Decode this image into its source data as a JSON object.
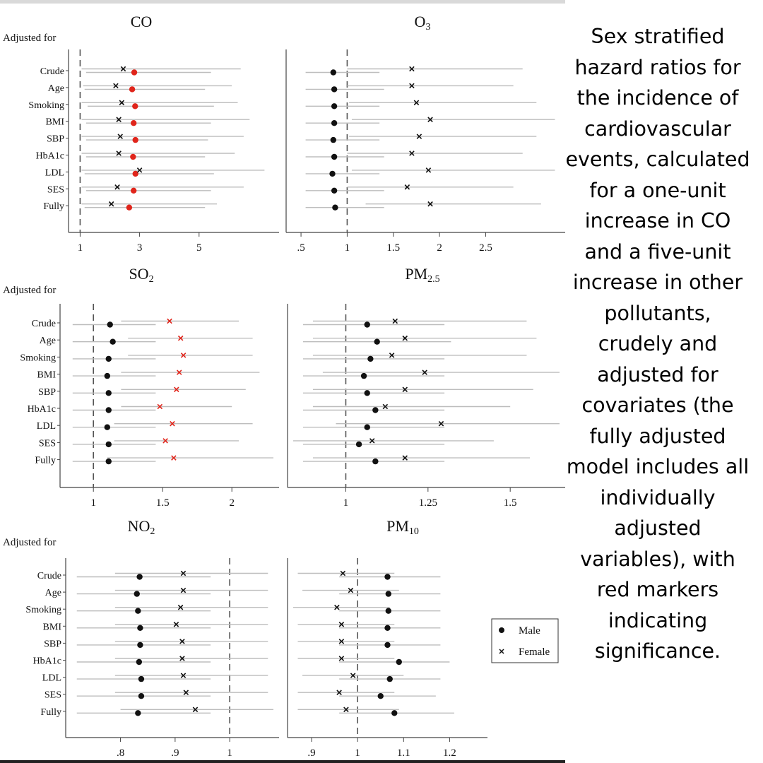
{
  "caption": "Sex stratified hazard ratios for the incidence of cardiovascular events, calculated for a one-unit increase in CO and a five-unit increase in other pollutants, crudely and adjusted for covariates (the fully adjusted model includes all individually adjusted variables), with red markers indicating significance.",
  "row_title": "Adjusted  for",
  "categories": [
    "Crude",
    "Age",
    "Smoking",
    "BMI",
    "SBP",
    "HbA1c",
    "LDL",
    "SES",
    "Fully"
  ],
  "legend": [
    {
      "label": "Male",
      "marker": "dot"
    },
    {
      "label": "Female",
      "marker": "cross"
    }
  ],
  "colors": {
    "significant": "#e0251b",
    "marker": "#111111",
    "ci": "#bdbdbd",
    "reference": "#555555"
  },
  "chart_data": [
    {
      "type": "forest",
      "title": "CO",
      "reference": 1,
      "xlim": [
        0.8,
        7.5
      ],
      "xticks": [
        {
          "v": 1,
          "label": "1"
        },
        {
          "v": 3,
          "label": "3"
        },
        {
          "v": 5,
          "label": "5"
        }
      ],
      "categories": [
        "Crude",
        "Age",
        "Smoking",
        "BMI",
        "SBP",
        "HbA1c",
        "LDL",
        "SES",
        "Fully"
      ],
      "series": [
        {
          "name": "Male",
          "marker": "dot",
          "values": [
            2.82,
            2.75,
            2.85,
            2.8,
            2.86,
            2.78,
            2.86,
            2.8,
            2.65
          ],
          "ci_low": [
            1.2,
            1.15,
            1.25,
            1.2,
            1.2,
            1.2,
            1.15,
            1.2,
            1.15
          ],
          "ci_high": [
            5.4,
            5.2,
            5.5,
            5.4,
            5.3,
            5.2,
            5.5,
            5.4,
            5.2
          ],
          "significant": [
            true,
            true,
            true,
            true,
            true,
            true,
            true,
            true,
            true
          ]
        },
        {
          "name": "Female",
          "marker": "cross",
          "values": [
            2.45,
            2.2,
            2.4,
            2.3,
            2.35,
            2.3,
            3.0,
            2.25,
            2.05
          ],
          "ci_low": [
            1.05,
            1.1,
            1.05,
            1.05,
            1.05,
            1.05,
            1.05,
            1.05,
            1.05
          ],
          "ci_high": [
            6.4,
            6.1,
            6.3,
            6.7,
            6.5,
            6.2,
            7.2,
            6.5,
            5.6
          ],
          "significant": [
            false,
            false,
            false,
            false,
            false,
            false,
            false,
            false,
            false
          ]
        }
      ]
    },
    {
      "type": "forest",
      "title": "O",
      "title_sub": "3",
      "reference": 1,
      "xlim": [
        0.4,
        3.3
      ],
      "xticks": [
        {
          "v": 0.5,
          "label": ".5"
        },
        {
          "v": 1,
          "label": "1"
        },
        {
          "v": 1.5,
          "label": "1.5"
        },
        {
          "v": 2,
          "label": "2"
        },
        {
          "v": 2.5,
          "label": "2.5"
        }
      ],
      "categories": [
        "Crude",
        "Age",
        "Smoking",
        "BMI",
        "SBP",
        "HbA1c",
        "LDL",
        "SES",
        "Fully"
      ],
      "series": [
        {
          "name": "Male",
          "marker": "dot",
          "values": [
            0.85,
            0.86,
            0.86,
            0.86,
            0.85,
            0.86,
            0.84,
            0.86,
            0.87
          ],
          "ci_low": [
            0.55,
            0.55,
            0.55,
            0.55,
            0.55,
            0.55,
            0.55,
            0.55,
            0.55
          ],
          "ci_high": [
            1.35,
            1.4,
            1.35,
            1.35,
            1.35,
            1.4,
            1.35,
            1.4,
            1.4
          ],
          "significant": [
            false,
            false,
            false,
            false,
            false,
            false,
            false,
            false,
            false
          ]
        },
        {
          "name": "Female",
          "marker": "cross",
          "values": [
            1.7,
            1.7,
            1.75,
            1.9,
            1.78,
            1.7,
            1.88,
            1.65,
            1.9
          ],
          "ci_low": [
            1.0,
            1.0,
            1.02,
            1.05,
            1.02,
            1.0,
            1.05,
            1.0,
            1.2
          ],
          "ci_high": [
            2.9,
            2.8,
            3.05,
            3.25,
            3.05,
            2.9,
            3.25,
            2.8,
            3.1
          ],
          "significant": [
            false,
            false,
            false,
            false,
            false,
            false,
            false,
            false,
            false
          ]
        }
      ]
    },
    {
      "type": "forest",
      "title": "SO",
      "title_sub": "2",
      "reference": 1,
      "xlim": [
        0.8,
        2.3
      ],
      "xticks": [
        {
          "v": 1,
          "label": "1"
        },
        {
          "v": 1.5,
          "label": "1.5"
        },
        {
          "v": 2,
          "label": "2"
        }
      ],
      "categories": [
        "Crude",
        "Age",
        "Smoking",
        "BMI",
        "SBP",
        "HbA1c",
        "LDL",
        "SES",
        "Fully"
      ],
      "series": [
        {
          "name": "Male",
          "marker": "dot",
          "values": [
            1.12,
            1.14,
            1.11,
            1.1,
            1.11,
            1.11,
            1.1,
            1.11,
            1.11
          ],
          "ci_low": [
            0.85,
            0.85,
            0.85,
            0.85,
            0.85,
            0.85,
            0.85,
            0.85,
            0.85
          ],
          "ci_high": [
            1.45,
            1.45,
            1.45,
            1.45,
            1.45,
            1.45,
            1.45,
            1.45,
            1.45
          ],
          "significant": [
            false,
            false,
            false,
            false,
            false,
            false,
            false,
            false,
            false
          ]
        },
        {
          "name": "Female",
          "marker": "cross",
          "values": [
            1.55,
            1.63,
            1.65,
            1.62,
            1.6,
            1.48,
            1.57,
            1.52,
            1.58
          ],
          "ci_low": [
            1.2,
            1.25,
            1.25,
            1.2,
            1.2,
            1.2,
            1.15,
            1.15,
            1.1
          ],
          "ci_high": [
            2.05,
            2.15,
            2.15,
            2.2,
            2.1,
            2.0,
            2.15,
            2.05,
            2.3
          ],
          "significant": [
            true,
            true,
            true,
            true,
            true,
            true,
            true,
            true,
            true
          ]
        }
      ]
    },
    {
      "type": "forest",
      "title": "PM",
      "title_sub": "2.5",
      "reference": 1,
      "xlim": [
        0.84,
        1.65
      ],
      "xticks": [
        {
          "v": 1,
          "label": "1"
        },
        {
          "v": 1.25,
          "label": "1.25"
        },
        {
          "v": 1.5,
          "label": "1.5"
        }
      ],
      "categories": [
        "Crude",
        "Age",
        "Smoking",
        "BMI",
        "SBP",
        "HbA1c",
        "LDL",
        "SES",
        "Fully"
      ],
      "series": [
        {
          "name": "Male",
          "marker": "dot",
          "values": [
            1.065,
            1.095,
            1.075,
            1.055,
            1.065,
            1.09,
            1.065,
            1.04,
            1.09
          ],
          "ci_low": [
            0.87,
            0.87,
            0.87,
            0.87,
            0.87,
            0.87,
            0.87,
            0.87,
            0.87
          ],
          "ci_high": [
            1.3,
            1.32,
            1.3,
            1.3,
            1.3,
            1.3,
            1.3,
            1.3,
            1.3
          ],
          "significant": [
            false,
            false,
            false,
            false,
            false,
            false,
            false,
            false,
            false
          ]
        },
        {
          "name": "Female",
          "marker": "cross",
          "values": [
            1.15,
            1.18,
            1.14,
            1.24,
            1.18,
            1.12,
            1.29,
            1.08,
            1.18
          ],
          "ci_low": [
            0.9,
            0.9,
            0.9,
            0.93,
            0.9,
            0.9,
            0.97,
            0.84,
            0.9
          ],
          "ci_high": [
            1.55,
            1.58,
            1.55,
            1.65,
            1.57,
            1.5,
            1.65,
            1.45,
            1.56
          ],
          "significant": [
            false,
            false,
            false,
            false,
            false,
            false,
            false,
            false,
            false
          ]
        }
      ]
    },
    {
      "type": "forest",
      "title": "NO",
      "title_sub": "2",
      "reference": 1,
      "xlim": [
        0.71,
        1.08
      ],
      "xticks": [
        {
          "v": 0.8,
          "label": ".8"
        },
        {
          "v": 0.9,
          "label": ".9"
        },
        {
          "v": 1,
          "label": "1"
        }
      ],
      "categories": [
        "Crude",
        "Age",
        "Smoking",
        "BMI",
        "SBP",
        "HbA1c",
        "LDL",
        "SES",
        "Fully"
      ],
      "series": [
        {
          "name": "Male",
          "marker": "dot",
          "values": [
            0.835,
            0.83,
            0.832,
            0.836,
            0.836,
            0.834,
            0.838,
            0.838,
            0.832
          ],
          "ci_low": [
            0.72,
            0.72,
            0.72,
            0.72,
            0.72,
            0.72,
            0.72,
            0.72,
            0.72
          ],
          "ci_high": [
            0.965,
            0.965,
            0.965,
            0.965,
            0.965,
            0.965,
            0.965,
            0.965,
            0.965
          ],
          "significant": [
            false,
            false,
            false,
            false,
            false,
            false,
            false,
            false,
            false
          ]
        },
        {
          "name": "Female",
          "marker": "cross",
          "values": [
            0.915,
            0.915,
            0.91,
            0.902,
            0.913,
            0.913,
            0.915,
            0.92,
            0.937
          ],
          "ci_low": [
            0.79,
            0.79,
            0.79,
            0.79,
            0.79,
            0.79,
            0.79,
            0.79,
            0.8
          ],
          "ci_high": [
            1.07,
            1.07,
            1.07,
            1.07,
            1.07,
            1.07,
            1.07,
            1.07,
            1.08
          ],
          "significant": [
            false,
            false,
            false,
            false,
            false,
            false,
            false,
            false,
            false
          ]
        }
      ]
    },
    {
      "type": "forest",
      "title": "PM",
      "title_sub": "10",
      "reference": 1,
      "xlim": [
        0.86,
        1.27
      ],
      "xticks": [
        {
          "v": 0.9,
          "label": ".9"
        },
        {
          "v": 1,
          "label": "1"
        },
        {
          "v": 1.1,
          "label": "1.1"
        },
        {
          "v": 1.2,
          "label": "1.2"
        }
      ],
      "categories": [
        "Crude",
        "Age",
        "Smoking",
        "BMI",
        "SBP",
        "HbA1c",
        "LDL",
        "SES",
        "Fully"
      ],
      "series": [
        {
          "name": "Male",
          "marker": "dot",
          "values": [
            1.065,
            1.067,
            1.067,
            1.065,
            1.065,
            1.09,
            1.07,
            1.05,
            1.08
          ],
          "ci_low": [
            0.96,
            0.96,
            0.96,
            0.96,
            0.96,
            0.96,
            0.96,
            0.96,
            0.96
          ],
          "ci_high": [
            1.18,
            1.18,
            1.18,
            1.18,
            1.18,
            1.2,
            1.18,
            1.17,
            1.21
          ],
          "significant": [
            false,
            false,
            false,
            false,
            false,
            false,
            false,
            false,
            false
          ]
        },
        {
          "name": "Female",
          "marker": "cross",
          "values": [
            0.968,
            0.985,
            0.955,
            0.965,
            0.965,
            0.965,
            0.99,
            0.96,
            0.975
          ],
          "ci_low": [
            0.87,
            0.88,
            0.86,
            0.87,
            0.87,
            0.87,
            0.88,
            0.87,
            0.87
          ],
          "ci_high": [
            1.08,
            1.09,
            1.07,
            1.08,
            1.08,
            1.08,
            1.1,
            1.08,
            1.09
          ],
          "significant": [
            false,
            false,
            false,
            false,
            false,
            false,
            false,
            false,
            false
          ]
        }
      ]
    }
  ]
}
